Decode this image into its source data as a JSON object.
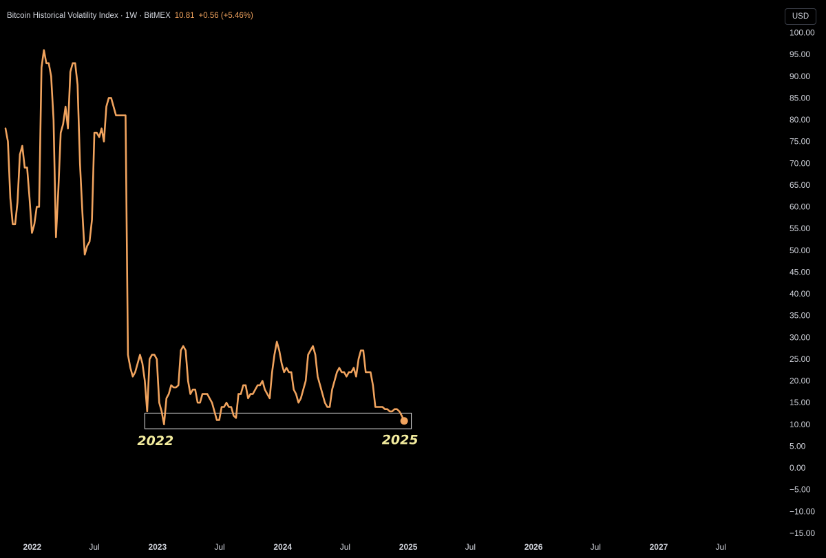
{
  "header": {
    "title": "Bitcoin Historical Volatility Index · 1W · BitMEX",
    "last_value": "10.81",
    "change": "+0.56 (+5.46%)",
    "currency_button": "USD"
  },
  "colors": {
    "background": "#000000",
    "line": "#f0a35e",
    "axis_text": "#d1d4dc",
    "annotation_text": "#f3ec9e",
    "box_border": "#e6e6e6"
  },
  "chart_data": {
    "type": "line",
    "title": "Bitcoin Historical Volatility Index · 1W · BitMEX",
    "ylim": [
      -15,
      100
    ],
    "yticks": [
      "100.00",
      "95.00",
      "90.00",
      "85.00",
      "80.00",
      "75.00",
      "70.00",
      "65.00",
      "60.00",
      "55.00",
      "50.00",
      "45.00",
      "40.00",
      "35.00",
      "30.00",
      "25.00",
      "20.00",
      "15.00",
      "10.00",
      "5.00",
      "0.00",
      "−5.00",
      "−10.00",
      "−15.00"
    ],
    "xlim": [
      "2021-10-15",
      "2027-10-15"
    ],
    "xticks": [
      {
        "date": "2022-01-01",
        "label": "2022",
        "major": true
      },
      {
        "date": "2022-07-01",
        "label": "Jul",
        "major": false
      },
      {
        "date": "2023-01-01",
        "label": "2023",
        "major": true
      },
      {
        "date": "2023-07-01",
        "label": "Jul",
        "major": false
      },
      {
        "date": "2024-01-01",
        "label": "2024",
        "major": true
      },
      {
        "date": "2024-07-01",
        "label": "Jul",
        "major": false
      },
      {
        "date": "2025-01-01",
        "label": "2025",
        "major": true
      },
      {
        "date": "2025-07-01",
        "label": "Jul",
        "major": false
      },
      {
        "date": "2026-01-01",
        "label": "2026",
        "major": true
      },
      {
        "date": "2026-07-01",
        "label": "Jul",
        "major": false
      },
      {
        "date": "2027-01-01",
        "label": "2027",
        "major": true
      },
      {
        "date": "2027-07-01",
        "label": "Jul",
        "major": false
      }
    ],
    "series": [
      {
        "points": [
          [
            "2021-10-15",
            78
          ],
          [
            "2021-10-22",
            75
          ],
          [
            "2021-10-29",
            62
          ],
          [
            "2021-11-05",
            56
          ],
          [
            "2021-11-12",
            56
          ],
          [
            "2021-11-19",
            61
          ],
          [
            "2021-11-26",
            72
          ],
          [
            "2021-12-03",
            74
          ],
          [
            "2021-12-10",
            69
          ],
          [
            "2021-12-17",
            69
          ],
          [
            "2021-12-24",
            62
          ],
          [
            "2021-12-31",
            54
          ],
          [
            "2022-01-07",
            56
          ],
          [
            "2022-01-14",
            60
          ],
          [
            "2022-01-21",
            60
          ],
          [
            "2022-01-28",
            92
          ],
          [
            "2022-02-04",
            96
          ],
          [
            "2022-02-11",
            93
          ],
          [
            "2022-02-18",
            93
          ],
          [
            "2022-02-25",
            90
          ],
          [
            "2022-03-04",
            80
          ],
          [
            "2022-03-11",
            53
          ],
          [
            "2022-03-18",
            64
          ],
          [
            "2022-03-25",
            77
          ],
          [
            "2022-04-01",
            79
          ],
          [
            "2022-04-08",
            83
          ],
          [
            "2022-04-15",
            78
          ],
          [
            "2022-04-22",
            91
          ],
          [
            "2022-04-29",
            93
          ],
          [
            "2022-05-06",
            93
          ],
          [
            "2022-05-13",
            88
          ],
          [
            "2022-05-20",
            70
          ],
          [
            "2022-05-27",
            59
          ],
          [
            "2022-06-03",
            49
          ],
          [
            "2022-06-10",
            51
          ],
          [
            "2022-06-17",
            52
          ],
          [
            "2022-06-24",
            57
          ],
          [
            "2022-07-01",
            77
          ],
          [
            "2022-07-08",
            77
          ],
          [
            "2022-07-15",
            76
          ],
          [
            "2022-07-22",
            78
          ],
          [
            "2022-07-29",
            75
          ],
          [
            "2022-08-05",
            83
          ],
          [
            "2022-08-12",
            85
          ],
          [
            "2022-08-19",
            85
          ],
          [
            "2022-08-26",
            83
          ],
          [
            "2022-09-02",
            81
          ],
          [
            "2022-09-09",
            81
          ],
          [
            "2022-09-16",
            81
          ],
          [
            "2022-09-23",
            81
          ],
          [
            "2022-09-30",
            81
          ],
          [
            "2022-10-07",
            26
          ],
          [
            "2022-10-14",
            23
          ],
          [
            "2022-10-21",
            21
          ],
          [
            "2022-10-28",
            22
          ],
          [
            "2022-11-04",
            24
          ],
          [
            "2022-11-11",
            26
          ],
          [
            "2022-11-18",
            24
          ],
          [
            "2022-11-25",
            20
          ],
          [
            "2022-12-02",
            13
          ],
          [
            "2022-12-09",
            25
          ],
          [
            "2022-12-16",
            26
          ],
          [
            "2022-12-23",
            26
          ],
          [
            "2022-12-30",
            25
          ],
          [
            "2023-01-06",
            15
          ],
          [
            "2023-01-13",
            13
          ],
          [
            "2023-01-20",
            10
          ],
          [
            "2023-01-27",
            16
          ],
          [
            "2023-02-03",
            17
          ],
          [
            "2023-02-10",
            19
          ],
          [
            "2023-02-17",
            18.5
          ],
          [
            "2023-02-24",
            18.5
          ],
          [
            "2023-03-03",
            19
          ],
          [
            "2023-03-10",
            27
          ],
          [
            "2023-03-17",
            28
          ],
          [
            "2023-03-24",
            27
          ],
          [
            "2023-03-31",
            20
          ],
          [
            "2023-04-07",
            17
          ],
          [
            "2023-04-14",
            18
          ],
          [
            "2023-04-21",
            18
          ],
          [
            "2023-04-28",
            15
          ],
          [
            "2023-05-05",
            15
          ],
          [
            "2023-05-12",
            17
          ],
          [
            "2023-05-19",
            17
          ],
          [
            "2023-05-26",
            17
          ],
          [
            "2023-06-02",
            16
          ],
          [
            "2023-06-09",
            15
          ],
          [
            "2023-06-16",
            13
          ],
          [
            "2023-06-23",
            11
          ],
          [
            "2023-06-30",
            11
          ],
          [
            "2023-07-07",
            14
          ],
          [
            "2023-07-14",
            14
          ],
          [
            "2023-07-21",
            15
          ],
          [
            "2023-07-28",
            14
          ],
          [
            "2023-08-04",
            14
          ],
          [
            "2023-08-11",
            12
          ],
          [
            "2023-08-18",
            11.5
          ],
          [
            "2023-08-25",
            17
          ],
          [
            "2023-09-01",
            17
          ],
          [
            "2023-09-08",
            19
          ],
          [
            "2023-09-15",
            19
          ],
          [
            "2023-09-22",
            16
          ],
          [
            "2023-09-29",
            17
          ],
          [
            "2023-10-06",
            17
          ],
          [
            "2023-10-13",
            18
          ],
          [
            "2023-10-20",
            19
          ],
          [
            "2023-10-27",
            19
          ],
          [
            "2023-11-03",
            20
          ],
          [
            "2023-11-10",
            18
          ],
          [
            "2023-11-17",
            17
          ],
          [
            "2023-11-24",
            16
          ],
          [
            "2023-12-01",
            22
          ],
          [
            "2023-12-08",
            26
          ],
          [
            "2023-12-15",
            29
          ],
          [
            "2023-12-22",
            27
          ],
          [
            "2023-12-29",
            24
          ],
          [
            "2024-01-05",
            22
          ],
          [
            "2024-01-12",
            23
          ],
          [
            "2024-01-19",
            22
          ],
          [
            "2024-01-26",
            22
          ],
          [
            "2024-02-02",
            18
          ],
          [
            "2024-02-09",
            17
          ],
          [
            "2024-02-16",
            15
          ],
          [
            "2024-02-23",
            16
          ],
          [
            "2024-03-01",
            18
          ],
          [
            "2024-03-08",
            20
          ],
          [
            "2024-03-15",
            26
          ],
          [
            "2024-03-22",
            27
          ],
          [
            "2024-03-29",
            28
          ],
          [
            "2024-04-05",
            26
          ],
          [
            "2024-04-12",
            21
          ],
          [
            "2024-04-19",
            19
          ],
          [
            "2024-04-26",
            17
          ],
          [
            "2024-05-03",
            15
          ],
          [
            "2024-05-10",
            14
          ],
          [
            "2024-05-17",
            14
          ],
          [
            "2024-05-24",
            18
          ],
          [
            "2024-05-31",
            20
          ],
          [
            "2024-06-07",
            22
          ],
          [
            "2024-06-14",
            23
          ],
          [
            "2024-06-21",
            22
          ],
          [
            "2024-06-28",
            22
          ],
          [
            "2024-07-05",
            21
          ],
          [
            "2024-07-12",
            22
          ],
          [
            "2024-07-19",
            22
          ],
          [
            "2024-07-26",
            23
          ],
          [
            "2024-08-02",
            21
          ],
          [
            "2024-08-09",
            25
          ],
          [
            "2024-08-16",
            27
          ],
          [
            "2024-08-23",
            27
          ],
          [
            "2024-08-30",
            22
          ],
          [
            "2024-09-06",
            22
          ],
          [
            "2024-09-13",
            22
          ],
          [
            "2024-09-20",
            19
          ],
          [
            "2024-09-27",
            14
          ],
          [
            "2024-10-04",
            14
          ],
          [
            "2024-10-11",
            14
          ],
          [
            "2024-10-18",
            14
          ],
          [
            "2024-10-25",
            13.5
          ],
          [
            "2024-11-01",
            13.5
          ],
          [
            "2024-11-08",
            13
          ],
          [
            "2024-11-15",
            13
          ],
          [
            "2024-11-22",
            13.5
          ],
          [
            "2024-11-29",
            13.5
          ],
          [
            "2024-12-06",
            13
          ],
          [
            "2024-12-13",
            12
          ],
          [
            "2024-12-20",
            10.81
          ]
        ]
      }
    ],
    "annotations": [
      {
        "type": "box",
        "x0": "2022-11-25",
        "x1": "2025-01-10",
        "y0": 9,
        "y1": 12.6
      },
      {
        "type": "label",
        "text": "2022",
        "x": "2022-12-26",
        "y": 5.2
      },
      {
        "type": "label",
        "text": "2025",
        "x": "2024-12-08",
        "y": 5.5
      }
    ],
    "last_point_marker": true,
    "grid": false
  }
}
